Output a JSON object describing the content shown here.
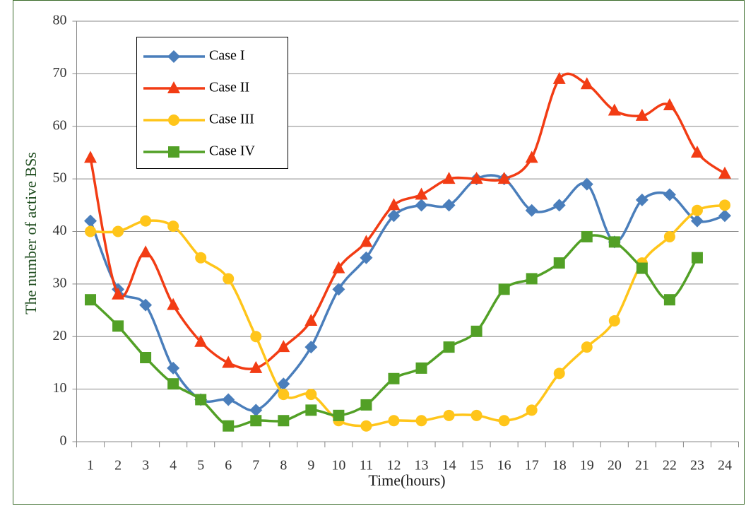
{
  "chart_data": {
    "type": "line",
    "xlabel": "Time(hours)",
    "ylabel": "The number of active BSs",
    "categories": [
      "1",
      "2",
      "3",
      "4",
      "5",
      "6",
      "7",
      "8",
      "9",
      "10",
      "11",
      "12",
      "13",
      "14",
      "15",
      "16",
      "17",
      "18",
      "19",
      "20",
      "21",
      "22",
      "23",
      "24"
    ],
    "ylim": [
      0,
      80
    ],
    "yticks": [
      0,
      10,
      20,
      30,
      40,
      50,
      60,
      70,
      80
    ],
    "grid": true,
    "smooth": true,
    "legend": "upper left",
    "series": [
      {
        "name": "Case I",
        "color": "#4a7ebb",
        "marker": "diamond",
        "values": [
          42,
          29,
          26,
          14,
          8,
          8,
          6,
          11,
          18,
          29,
          35,
          43,
          45,
          45,
          50,
          50,
          44,
          45,
          49,
          38,
          46,
          47,
          42,
          43
        ]
      },
      {
        "name": "Case II",
        "color": "#f23c14",
        "marker": "triangle",
        "values": [
          54,
          28,
          36,
          26,
          19,
          15,
          14,
          18,
          23,
          33,
          38,
          45,
          47,
          50,
          50,
          50,
          54,
          69,
          68,
          63,
          62,
          64,
          55,
          51
        ]
      },
      {
        "name": "Case III",
        "color": "#ffc51a",
        "marker": "circle",
        "values": [
          40,
          40,
          42,
          41,
          35,
          31,
          20,
          9,
          9,
          4,
          3,
          4,
          4,
          5,
          5,
          4,
          6,
          13,
          18,
          23,
          34,
          39,
          44,
          45
        ]
      },
      {
        "name": "Case IV",
        "color": "#52a026",
        "marker": "square",
        "values": [
          27,
          22,
          16,
          11,
          8,
          3,
          4,
          4,
          6,
          5,
          7,
          12,
          14,
          18,
          21,
          29,
          31,
          34,
          39,
          38,
          33,
          27,
          35,
          null
        ]
      }
    ]
  }
}
